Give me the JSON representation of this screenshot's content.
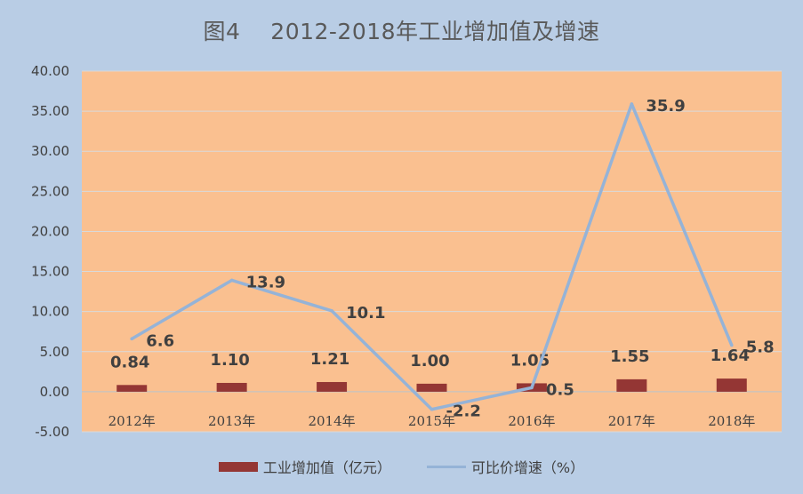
{
  "chart_data": {
    "type": "bar+line",
    "title": "图4　 2012-2018年工业增加值及增速",
    "categories": [
      "2012年",
      "2013年",
      "2014年",
      "2015年",
      "2016年",
      "2017年",
      "2018年"
    ],
    "series": [
      {
        "name": "工业增加值（亿元）",
        "type": "bar",
        "values": [
          0.84,
          1.1,
          1.21,
          1.0,
          1.05,
          1.55,
          1.64
        ],
        "labels": [
          "0.84",
          "1.10",
          "1.21",
          "1.00",
          "1.05",
          "1.55",
          "1.64"
        ],
        "color": "#943634"
      },
      {
        "name": "可比价增速（%）",
        "type": "line",
        "values": [
          6.6,
          13.9,
          10.1,
          -2.2,
          0.5,
          35.9,
          5.8
        ],
        "labels": [
          "6.6",
          "13.9",
          "10.1",
          "-2.2",
          "0.5",
          "35.9",
          "5.8"
        ],
        "color": "#95b3d7"
      }
    ],
    "ylim": [
      -5,
      40
    ],
    "yticks": [
      "-5.00",
      "0.00",
      "5.00",
      "10.00",
      "15.00",
      "20.00",
      "25.00",
      "30.00",
      "35.00",
      "40.00"
    ],
    "grid": true,
    "legend_position": "bottom",
    "colors": {
      "plot_bg": "#fac090",
      "outer_bg": "#b9cde5",
      "grid": "#d9d9d9"
    }
  }
}
